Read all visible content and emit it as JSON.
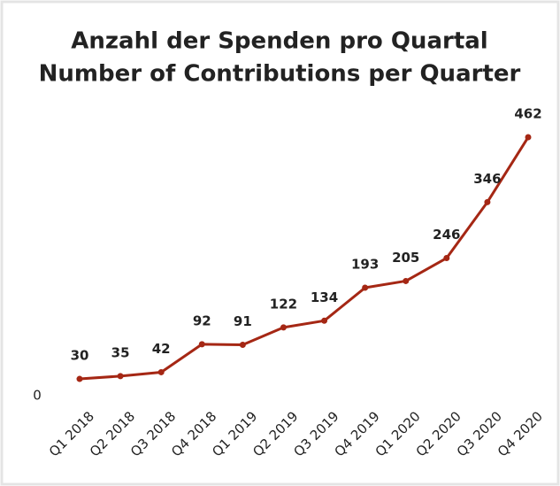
{
  "chart_data": {
    "type": "line",
    "title": [
      "Anzahl der Spenden pro Quartal",
      "Number of Contributions per Quarter"
    ],
    "categories": [
      "Q1 2018",
      "Q2 2018",
      "Q3 2018",
      "Q4 2018",
      "Q1 2019",
      "Q2 2019",
      "Q3 2019",
      "Q4 2019",
      "Q1 2020",
      "Q2 2020",
      "Q3 2020",
      "Q4 2020"
    ],
    "series": [
      {
        "name": "Contributions",
        "color": "#a52714",
        "values": [
          30,
          35,
          42,
          92,
          91,
          122,
          134,
          193,
          205,
          246,
          346,
          462
        ]
      }
    ],
    "ylim": [
      0,
      500
    ],
    "yticks": [
      0
    ],
    "grid": false
  }
}
